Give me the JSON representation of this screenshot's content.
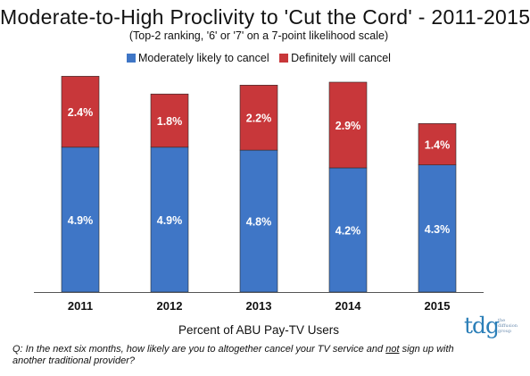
{
  "chart_data": {
    "type": "bar",
    "stacked": true,
    "title": "Moderate-to-High Proclivity to 'Cut the Cord' - 2011-2015",
    "subtitle": "(Top-2 ranking, '6' or '7' on a 7-point likelihood scale)",
    "xlabel": "Percent of ABU Pay-TV Users",
    "ylabel": "",
    "categories": [
      "2011",
      "2012",
      "2013",
      "2014",
      "2015"
    ],
    "series": [
      {
        "name": "Moderately likely to cancel",
        "color": "#3f76c6",
        "values": [
          4.9,
          4.9,
          4.8,
          4.2,
          4.3
        ],
        "labels": [
          "4.9%",
          "4.9%",
          "4.8%",
          "4.2%",
          "4.3%"
        ]
      },
      {
        "name": "Definitely will cancel",
        "color": "#c8373a",
        "values": [
          2.4,
          1.8,
          2.2,
          2.9,
          1.4
        ],
        "labels": [
          "2.4%",
          "1.8%",
          "2.2%",
          "2.9%",
          "1.4%"
        ]
      }
    ],
    "ylim": [
      0,
      8
    ],
    "grid": false,
    "legend_position": "top"
  },
  "footnote": {
    "prefix": "Q: In the next six months, how likely are you to altogether cancel your TV service and ",
    "emphasis": "not",
    "suffix": " sign up with  another traditional provider?"
  },
  "logo": {
    "mark": "tdg",
    "tagline_1": "the",
    "tagline_2": "diffusion",
    "tagline_3": "group"
  }
}
